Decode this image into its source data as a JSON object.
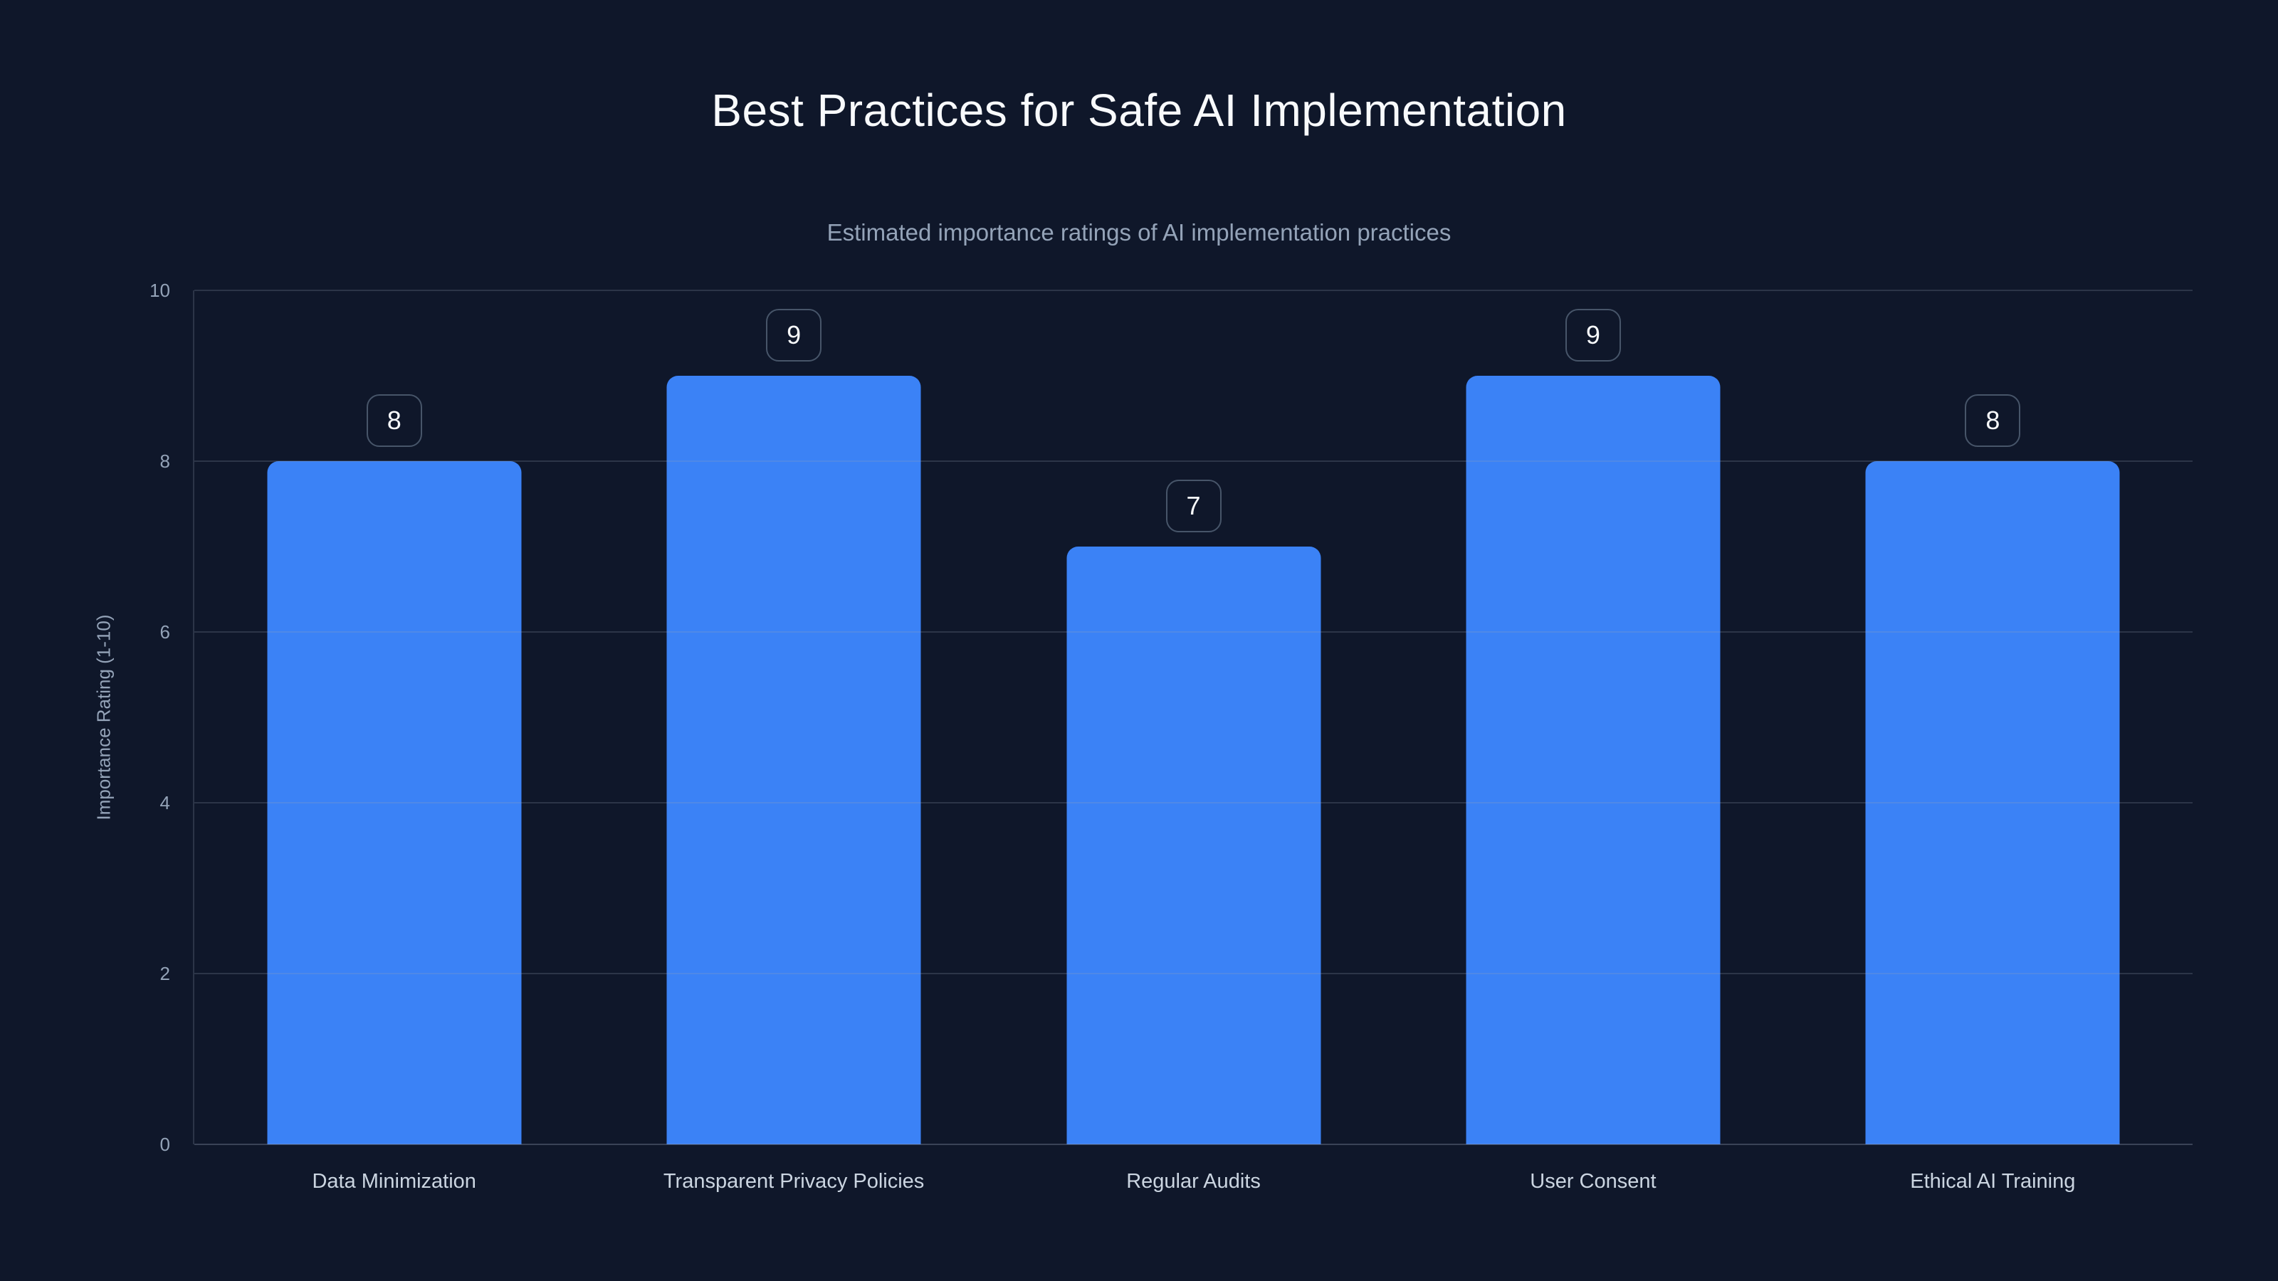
{
  "chart_data": {
    "type": "bar",
    "title": "Best Practices for Safe AI Implementation",
    "subtitle": "Estimated importance ratings of AI implementation practices",
    "categories": [
      "Data Minimization",
      "Transparent Privacy Policies",
      "Regular Audits",
      "User Consent",
      "Ethical AI Training"
    ],
    "values": [
      8,
      9,
      7,
      9,
      8
    ],
    "value_labels": [
      "8",
      "9",
      "7",
      "9",
      "8"
    ],
    "xlabel": "",
    "ylabel": "Importance Rating (1-10)",
    "ylim": [
      0,
      10
    ],
    "yticks": [
      0,
      2,
      4,
      6,
      8,
      10
    ],
    "grid": "horizontal-on",
    "legend": "none",
    "colors": {
      "background": "#0f172a",
      "bar": "#3b82f6",
      "title_text": "#f8fafc",
      "subtitle_text": "#94a3b8",
      "axis_text": "#94a3b8",
      "category_text": "#cbd5e1",
      "badge_border": "#475569",
      "badge_text": "#f8fafc",
      "gridline": "rgba(148,163,184,0.22)"
    }
  }
}
